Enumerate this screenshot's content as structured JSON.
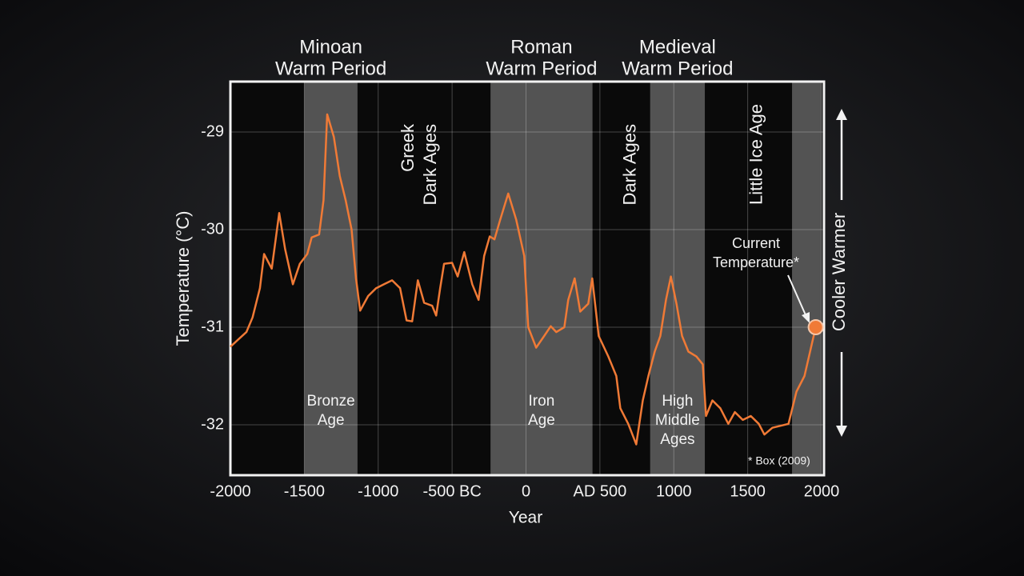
{
  "chart_data": {
    "type": "line",
    "x_label": "Year",
    "y_label": "Temperature (°C)",
    "xlim": [
      -2000,
      2000
    ],
    "ylim": [
      -32.5,
      -28.5
    ],
    "xticks": [
      -2000,
      -1500,
      -1000,
      {
        "value": -500,
        "label": "-500 BC"
      },
      0,
      {
        "value": 500,
        "label": "AD 500"
      },
      1000,
      1500,
      2000
    ],
    "yticks": [
      -29,
      -30,
      -31,
      -32
    ],
    "grid": true,
    "series": [
      {
        "color": "#f07a36",
        "x": [
          -2000,
          -1950,
          -1892,
          -1850,
          -1800,
          -1772,
          -1720,
          -1670,
          -1630,
          -1577,
          -1530,
          -1480,
          -1450,
          -1400,
          -1370,
          -1345,
          -1300,
          -1260,
          -1220,
          -1180,
          -1150,
          -1122,
          -1068,
          -1014,
          -960,
          -906,
          -852,
          -808,
          -770,
          -732,
          -689,
          -635,
          -608,
          -581,
          -554,
          -500,
          -462,
          -418,
          -364,
          -321,
          -283,
          -245,
          -213,
          -175,
          -120,
          -66,
          -12,
          15,
          69,
          123,
          167,
          205,
          259,
          286,
          329,
          367,
          421,
          448,
          492,
          557,
          611,
          638,
          692,
          746,
          790,
          828,
          871,
          909,
          947,
          980,
          1018,
          1056,
          1099,
          1153,
          1196,
          1218,
          1261,
          1315,
          1369,
          1413,
          1467,
          1521,
          1575,
          1613,
          1667,
          1776,
          1830,
          1884,
          1960
        ],
        "values": [
          -31.2,
          -31.13,
          -31.05,
          -30.9,
          -30.6,
          -30.25,
          -30.4,
          -29.83,
          -30.2,
          -30.56,
          -30.35,
          -30.25,
          -30.08,
          -30.05,
          -29.7,
          -28.82,
          -29.05,
          -29.45,
          -29.7,
          -30.0,
          -30.5,
          -30.83,
          -30.68,
          -30.6,
          -30.56,
          -30.52,
          -30.6,
          -30.93,
          -30.94,
          -30.52,
          -30.75,
          -30.78,
          -30.88,
          -30.6,
          -30.35,
          -30.34,
          -30.48,
          -30.23,
          -30.56,
          -30.72,
          -30.27,
          -30.07,
          -30.1,
          -29.9,
          -29.63,
          -29.9,
          -30.27,
          -31.0,
          -31.21,
          -31.09,
          -30.99,
          -31.05,
          -31.0,
          -30.72,
          -30.5,
          -30.84,
          -30.76,
          -30.5,
          -31.09,
          -31.3,
          -31.5,
          -31.83,
          -31.99,
          -32.2,
          -31.75,
          -31.5,
          -31.25,
          -31.09,
          -30.72,
          -30.48,
          -30.76,
          -31.09,
          -31.25,
          -31.3,
          -31.38,
          -31.91,
          -31.75,
          -31.83,
          -31.99,
          -31.87,
          -31.95,
          -31.91,
          -31.99,
          -32.1,
          -32.03,
          -31.99,
          -31.66,
          -31.5,
          -31.0
        ]
      }
    ],
    "periods": [
      {
        "start": -1500,
        "end": -1140,
        "label": [
          "Minoan",
          "Warm Period"
        ],
        "inner": [
          "Bronze",
          "Age"
        ]
      },
      {
        "start": -240,
        "end": 450,
        "label": [
          "Roman",
          "Warm Period"
        ],
        "inner": [
          "Iron",
          "Age"
        ]
      },
      {
        "start": 840,
        "end": 1210,
        "label": [
          "Medieval",
          "Warm Period"
        ],
        "inner": [
          "High",
          "Middle",
          "Ages"
        ]
      },
      {
        "start": 1800,
        "end": 2000
      }
    ],
    "rotated_labels": [
      {
        "x": -715,
        "label": [
          "Greek",
          "Dark Ages"
        ]
      },
      {
        "x": 710,
        "label": [
          "Dark Ages"
        ]
      },
      {
        "x": 1565,
        "label": [
          "Little Ice Age"
        ]
      }
    ],
    "current_label": [
      "Current",
      "Temperature*"
    ],
    "footnote": "* Box (2009)",
    "side_label": "Cooler Warmer"
  }
}
